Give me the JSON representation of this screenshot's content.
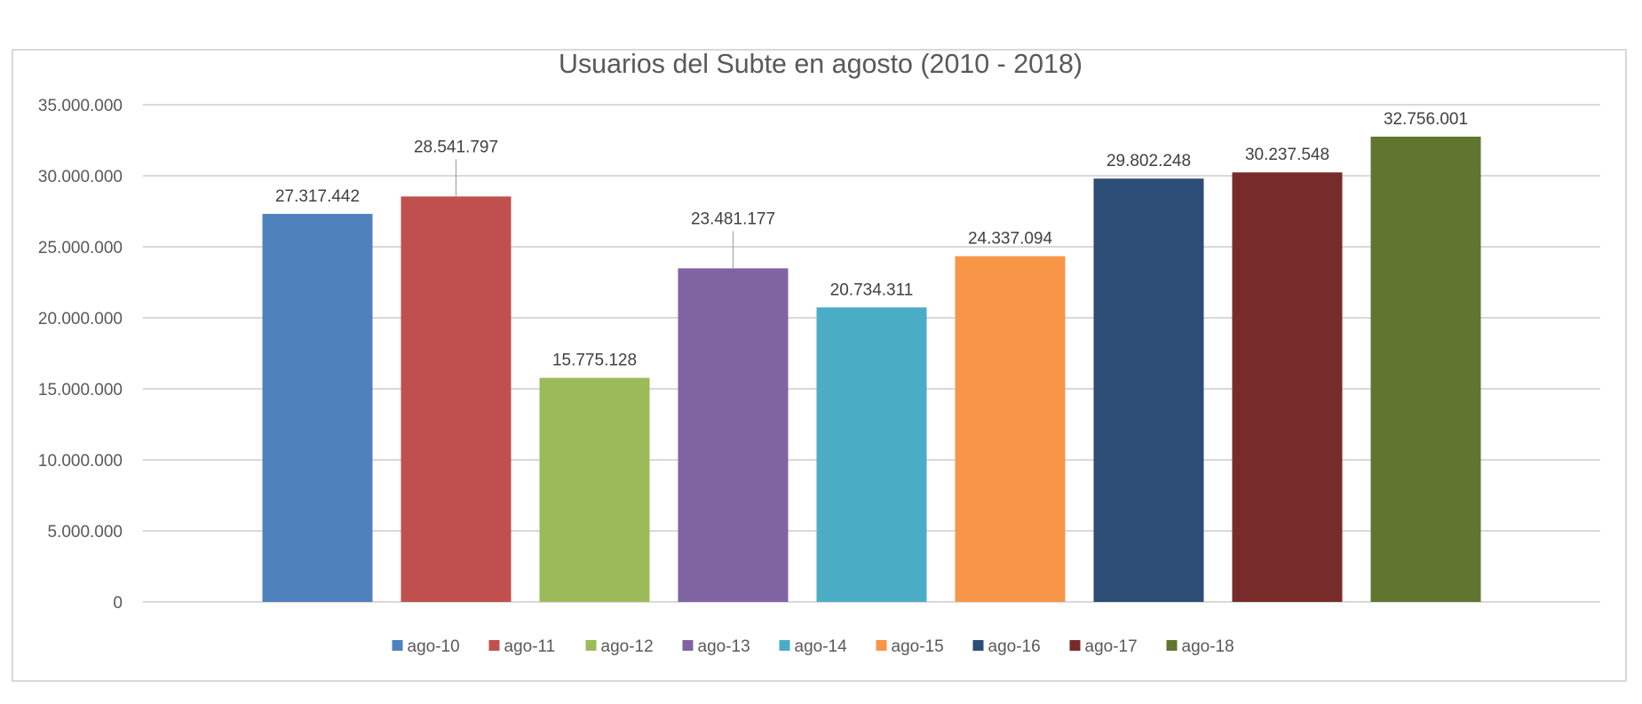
{
  "chart_data": {
    "type": "bar",
    "title": "Usuarios del Subte en agosto (2010 - 2018)",
    "categories": [
      "ago-10",
      "ago-11",
      "ago-12",
      "ago-13",
      "ago-14",
      "ago-15",
      "ago-16",
      "ago-17",
      "ago-18"
    ],
    "values": [
      27317442,
      28541797,
      15775128,
      23481177,
      20734311,
      24337094,
      29802248,
      30237548,
      32756001
    ],
    "data_labels": [
      "27.317.442",
      "28.541.797",
      "15.775.128",
      "23.481.177",
      "20.734.311",
      "24.337.094",
      "29.802.248",
      "30.237.548",
      "32.756.001"
    ],
    "colors": [
      "#4F81BD",
      "#C0504D",
      "#9BBB59",
      "#8064A2",
      "#4BACC6",
      "#F79646",
      "#2C4D75",
      "#772C2A",
      "#5F7530"
    ],
    "ylim": [
      0,
      35000000
    ],
    "yticks": [
      0,
      5000000,
      10000000,
      15000000,
      20000000,
      25000000,
      30000000,
      35000000
    ],
    "ytick_labels": [
      "0",
      "5.000.000",
      "10.000.000",
      "15.000.000",
      "20.000.000",
      "25.000.000",
      "30.000.000",
      "35.000.000"
    ],
    "xlabel": "",
    "ylabel": "",
    "grid": true,
    "legend_position": "bottom"
  }
}
